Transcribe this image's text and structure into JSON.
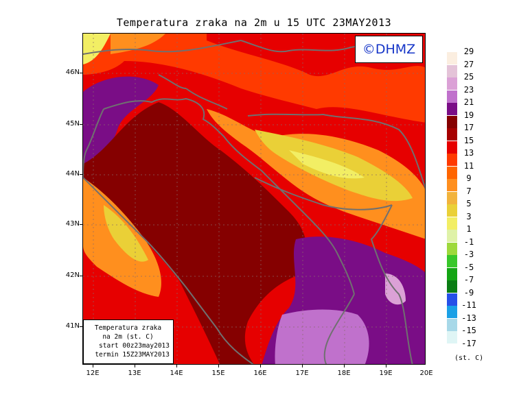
{
  "title": "Temperatura zraka na 2m u 15 UTC 23MAY2013",
  "watermark": "©DHMZ",
  "info_box": {
    "line1": "Temperatura zraka",
    "line2": "na 2m (st. C)",
    "line3": "start 00z23may2013",
    "line4": "termin 15Z23MAY2013"
  },
  "latitude_labels": [
    "46N",
    "45N",
    "44N",
    "43N",
    "42N",
    "41N"
  ],
  "longitude_labels": [
    "12E",
    "13E",
    "14E",
    "15E",
    "16E",
    "17E",
    "18E",
    "19E",
    "20E"
  ],
  "legend": {
    "unit": "(st. C)",
    "levels": [
      {
        "label": "29",
        "color": "#fbeee0"
      },
      {
        "label": "27",
        "color": "#e4c3d8"
      },
      {
        "label": "25",
        "color": "#dba1d6"
      },
      {
        "label": "23",
        "color": "#c071cc"
      },
      {
        "label": "21",
        "color": "#7a0d86"
      },
      {
        "label": "19",
        "color": "#850000"
      },
      {
        "label": "17",
        "color": "#a60000"
      },
      {
        "label": "15",
        "color": "#e60000"
      },
      {
        "label": "13",
        "color": "#ff3a00"
      },
      {
        "label": "11",
        "color": "#ff6500"
      },
      {
        "label": "9",
        "color": "#ff8f1e"
      },
      {
        "label": "7",
        "color": "#f2b33c"
      },
      {
        "label": "5",
        "color": "#ead037"
      },
      {
        "label": "3",
        "color": "#f2ee64"
      },
      {
        "label": "1",
        "color": "#dff2a8"
      },
      {
        "label": "-1",
        "color": "#9ed93c"
      },
      {
        "label": "-3",
        "color": "#38c72a"
      },
      {
        "label": "-5",
        "color": "#14a514"
      },
      {
        "label": "-7",
        "color": "#0a7d14"
      },
      {
        "label": "-9",
        "color": "#2650e8"
      },
      {
        "label": "-11",
        "color": "#1aa0e6"
      },
      {
        "label": "-13",
        "color": "#a7d8e8"
      },
      {
        "label": "-15",
        "color": "#dff5f5"
      },
      {
        "label": "-17",
        "color": ""
      }
    ]
  }
}
